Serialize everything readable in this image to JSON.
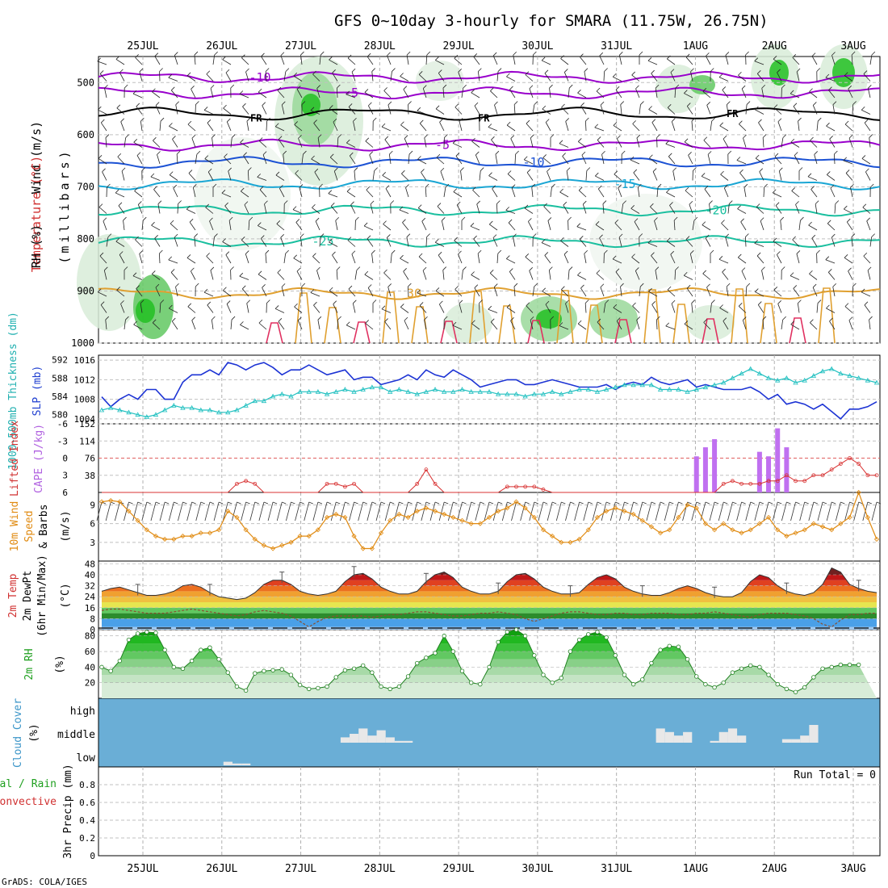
{
  "title": "GFS 0~10day 3-hourly for SMARA (11.75W, 26.75N)",
  "credit": "GrADS: COLA/IGES",
  "dates": [
    "25JUL",
    "26JUL",
    "27JUL",
    "28JUL",
    "29JUL",
    "30JUL",
    "31JUL",
    "1AUG",
    "2AUG",
    "3AUG"
  ],
  "panels": {
    "upper": {
      "ylabel_wind": "Wind (m/s)",
      "ylabel_temp": "Temperature (°C)",
      "ylabel_rh": "RH (%)",
      "ylabel_pressure": "(millibars)",
      "freezing_label": "FR"
    },
    "slp": {
      "ylabel_thick": "1000-500mb Thickness (dm)",
      "ylabel_slp": "SLP (mb)"
    },
    "cape": {
      "ylabel_li": "Lifted Index",
      "ylabel_cape": "CAPE (J/kg)"
    },
    "wind10": {
      "ylabel_a": "10m Wind",
      "ylabel_b": "Speed",
      "ylabel_c": "& Barbs",
      "ylabel_unit": "(m/s)"
    },
    "temp": {
      "ylabel_a": "2m Temp",
      "ylabel_b": "2m DewPt",
      "ylabel_c": "(6hr Min/Max)",
      "ylabel_unit": "(°C)"
    },
    "rh": {
      "ylabel_a": "2m RH",
      "ylabel_unit": "(%)"
    },
    "cloud": {
      "ylabel_a": "Cloud Cover",
      "ylabel_unit": "(%)",
      "levels": [
        "high",
        "middle",
        "low"
      ]
    },
    "precip": {
      "ylabel_total": "Total / Rain",
      "ylabel_conv": "Convective",
      "ylabel_a": "3hr Precip (mm)",
      "run_total": "Run Total = 0"
    }
  },
  "colors": {
    "isotherm_purple": "#9900cc",
    "isotherm_blue": "#1c52d4",
    "isotherm_sky": "#1aa6d4",
    "isotherm_teal": "#1abf9f",
    "isotherm_orange": "#e0a030",
    "slp_line": "#1c33d4",
    "thick_line": "#20c0c0",
    "li_line": "#d83030",
    "cape_bar": "#c070f0",
    "wind_line": "#e08a10",
    "rh_line": "#208020",
    "cloud_bg": "#6aaed6",
    "cloud_block": "#e8e8e8"
  },
  "chart_data": [
    {
      "panel": "upper-air",
      "type": "heatmap",
      "title": "Wind (m/s), Temperature (°C), RH (%)",
      "ylabel": "(millibars)",
      "y_ticks": [
        500,
        600,
        700,
        800,
        900,
        1000
      ],
      "ylim": [
        1000,
        450
      ],
      "isotherms": [
        {
          "label": "-10",
          "level_mb": 490
        },
        {
          "label": "-5",
          "level_mb": 520
        },
        {
          "label": "-5",
          "level_mb": 620
        },
        {
          "label": "-10",
          "level_mb": 653
        },
        {
          "label": "-15",
          "level_mb": 695
        },
        {
          "label": "-20",
          "level_mb": 745
        },
        {
          "label": "-25",
          "level_mb": 805
        },
        {
          "label": "30",
          "level_mb": 905
        }
      ],
      "contour_labels": [
        "5",
        "5",
        "5",
        "10",
        "15",
        "20",
        "25",
        "25",
        "30",
        "10",
        "-10",
        "-5",
        "-5",
        "10",
        "15",
        "20",
        "30",
        "30"
      ],
      "freezing_level_mb": 560
    },
    {
      "panel": "slp-thickness",
      "type": "line",
      "left_axis": {
        "label": "1000-500mb Thickness (dm)",
        "ticks": [
          580,
          584,
          588,
          592
        ]
      },
      "right_axis": {
        "label": "SLP (mb)",
        "ticks": [
          1004,
          1008,
          1012,
          1016
        ]
      },
      "series": [
        {
          "name": "SLP (mb)",
          "values": [
            1008.5,
            1006.5,
            1008,
            1009,
            1008,
            1010,
            1010,
            1008,
            1008,
            1011.5,
            1013,
            1013,
            1014,
            1013,
            1015.5,
            1015,
            1014,
            1015,
            1015.5,
            1014.5,
            1013,
            1014,
            1014,
            1015,
            1014,
            1013,
            1013.5,
            1014,
            1012,
            1012.5,
            1012.5,
            1011,
            1011.5,
            1012,
            1013,
            1012,
            1014,
            1013,
            1012.5,
            1014,
            1013,
            1012,
            1010.5,
            1011,
            1011.5,
            1012,
            1012,
            1011,
            1011,
            1011.5,
            1012,
            1011.5,
            1011,
            1010.5,
            1010.5,
            1010.5,
            1011,
            1010,
            1011,
            1011.5,
            1011,
            1012.5,
            1011.5,
            1011,
            1011.5,
            1012,
            1010.5,
            1011,
            1010.5,
            1010,
            1010,
            1010,
            1010.5,
            1009.5,
            1008,
            1009,
            1007,
            1007.5,
            1007,
            1006,
            1007,
            1005.5,
            1004,
            1006,
            1006,
            1006.5,
            1007.5
          ]
        },
        {
          "name": "Thickness (dm)",
          "values": [
            581,
            581.5,
            581,
            580.5,
            580,
            579.5,
            580,
            581,
            582,
            581.5,
            581.5,
            581,
            581,
            580.5,
            580.5,
            581,
            582,
            583,
            583,
            584,
            584.5,
            584,
            585,
            585,
            585,
            584.5,
            585,
            585.5,
            585,
            585.5,
            586,
            586,
            585,
            585.5,
            585,
            584.5,
            585,
            585.5,
            585,
            585,
            585.5,
            585,
            585,
            585,
            584.5,
            584.5,
            584.5,
            584,
            584.5,
            584.5,
            585,
            584.5,
            585,
            585.5,
            585.5,
            585,
            585.5,
            586,
            586.5,
            586.5,
            586.5,
            586.5,
            585.5,
            585.5,
            585.5,
            585,
            585.5,
            586,
            586.5,
            587,
            588,
            589,
            590,
            589,
            588,
            587.5,
            588,
            587,
            587.5,
            588.5,
            589.5,
            590,
            589,
            588.5,
            588,
            587.5,
            587
          ]
        }
      ]
    },
    {
      "panel": "cape-li",
      "type": "bar",
      "left_axis": {
        "label": "Lifted Index",
        "ticks": [
          "6",
          "3",
          "0",
          "-3",
          "-6"
        ]
      },
      "right_axis": {
        "label": "CAPE (J/kg)",
        "ticks": [
          38,
          76,
          114,
          152
        ]
      },
      "cape_bars": [
        {
          "step": 66,
          "value": 80
        },
        {
          "step": 67,
          "value": 100
        },
        {
          "step": 68,
          "value": 118
        },
        {
          "step": 73,
          "value": 90
        },
        {
          "step": 74,
          "value": 80
        },
        {
          "step": 75,
          "value": 142
        },
        {
          "step": 76,
          "value": 100
        }
      ],
      "lifted_index": [
        6,
        6,
        6,
        6,
        6,
        6,
        6,
        6,
        6,
        6,
        6,
        6,
        6,
        6,
        6,
        4.5,
        4,
        4.5,
        6,
        6,
        6,
        6,
        6,
        6,
        6,
        4.5,
        4.5,
        5,
        4.5,
        6,
        6,
        6,
        6,
        6,
        6,
        4.5,
        2,
        4.5,
        6,
        6,
        6,
        6,
        6,
        6,
        6,
        5,
        5,
        5,
        5,
        5.5,
        6,
        6,
        6,
        6,
        6,
        6,
        6,
        6,
        6,
        6,
        6,
        6,
        6,
        6,
        6,
        6,
        6,
        6,
        6,
        4.5,
        4,
        4.5,
        4.5,
        4.5,
        4,
        4,
        3,
        4,
        4,
        3,
        3,
        2,
        1,
        0,
        1,
        3,
        3
      ]
    },
    {
      "panel": "wind10m",
      "type": "line",
      "ylabel": "Speed & Barbs (m/s)",
      "y_ticks": [
        3,
        6,
        9
      ],
      "ylim": [
        0,
        11
      ],
      "series": [
        {
          "name": "10m Wind Speed",
          "values": [
            9.5,
            9.7,
            9.5,
            8,
            6.5,
            5,
            4,
            3.5,
            3.5,
            4,
            4,
            4.5,
            4.5,
            5,
            8,
            7,
            5,
            3.5,
            2.5,
            2,
            2.5,
            3,
            4,
            4,
            5,
            7,
            7.5,
            7,
            4,
            2,
            2,
            4.5,
            6.5,
            7.5,
            7,
            8,
            8.5,
            8,
            7.5,
            7,
            6.5,
            6,
            6,
            7,
            8,
            8.5,
            9.5,
            8.5,
            7,
            5,
            4,
            3,
            3,
            3.5,
            5,
            7,
            8,
            8.5,
            8,
            7.5,
            6.5,
            5.5,
            4.5,
            5,
            7,
            9,
            8.5,
            6,
            5,
            6,
            5,
            4.5,
            5,
            6,
            7,
            5,
            4,
            4.5,
            5,
            6,
            5.5,
            5,
            6,
            7,
            11,
            7,
            3.5
          ]
        }
      ]
    },
    {
      "panel": "temp2m",
      "type": "area",
      "ylabel": "2m Temp / 2m DewPt (6hr Min/Max) (°C)",
      "y_ticks": [
        0,
        8,
        16,
        24,
        32,
        40,
        48
      ],
      "ylim": [
        0,
        48
      ],
      "series": [
        {
          "name": "2m Temp",
          "values": [
            28,
            30,
            31,
            29,
            27,
            25,
            25,
            26,
            28,
            32,
            33,
            31,
            27,
            24,
            23,
            22,
            23,
            27,
            33,
            36,
            36,
            33,
            28,
            26,
            25,
            26,
            28,
            35,
            40,
            41,
            37,
            31,
            28,
            26,
            26,
            28,
            35,
            40,
            42,
            38,
            31,
            28,
            26,
            26,
            28,
            35,
            40,
            41,
            37,
            31,
            28,
            26,
            26,
            27,
            33,
            38,
            40,
            37,
            31,
            28,
            26,
            25,
            25,
            27,
            30,
            32,
            30,
            27,
            25,
            24,
            24,
            27,
            35,
            40,
            38,
            32,
            28,
            26,
            25,
            27,
            33,
            45,
            42,
            33,
            30,
            28,
            27
          ]
        },
        {
          "name": "2m DewPt",
          "values": [
            14,
            15,
            15,
            14,
            13,
            12,
            12,
            12,
            13,
            14,
            15,
            14,
            13,
            12,
            11,
            10,
            11,
            13,
            14,
            13,
            12,
            10,
            6,
            2,
            6,
            9,
            10,
            10,
            10,
            10,
            9,
            10,
            11,
            11,
            12,
            13,
            13,
            12,
            11,
            10,
            10,
            11,
            12,
            12,
            13,
            12,
            11,
            8,
            6,
            8,
            10,
            12,
            13,
            13,
            12,
            11,
            11,
            12,
            12,
            11,
            11,
            12,
            12,
            12,
            11,
            11,
            12,
            12,
            13,
            12,
            11,
            10,
            9,
            11,
            12,
            12,
            12,
            11,
            10,
            8,
            4,
            2,
            7,
            11,
            11,
            12,
            12
          ]
        }
      ]
    },
    {
      "panel": "rh2m",
      "type": "area",
      "ylabel": "2m RH (%)",
      "y_ticks": [
        20,
        40,
        60,
        80
      ],
      "ylim": [
        0,
        88
      ],
      "series": [
        {
          "name": "2m RH",
          "values": [
            40,
            35,
            48,
            75,
            83,
            85,
            84,
            62,
            40,
            38,
            48,
            62,
            65,
            50,
            33,
            15,
            10,
            32,
            35,
            36,
            37,
            30,
            17,
            12,
            13,
            15,
            27,
            36,
            38,
            42,
            33,
            15,
            12,
            15,
            28,
            45,
            52,
            58,
            80,
            60,
            35,
            20,
            18,
            40,
            72,
            85,
            88,
            80,
            55,
            30,
            20,
            26,
            60,
            75,
            82,
            85,
            78,
            55,
            30,
            18,
            24,
            45,
            62,
            67,
            66,
            50,
            28,
            18,
            14,
            20,
            33,
            38,
            42,
            40,
            30,
            18,
            12,
            8,
            14,
            27,
            38,
            40,
            43,
            43,
            43
          ]
        }
      ]
    },
    {
      "panel": "cloud",
      "type": "bar",
      "levels": [
        "high",
        "middle",
        "low"
      ],
      "blocks": [
        {
          "level": "low",
          "steps": [
            14,
            15,
            16
          ],
          "heights": [
            2,
            1,
            1
          ]
        },
        {
          "level": "middle",
          "steps": [
            27,
            28,
            29,
            30,
            31,
            32,
            33,
            34
          ],
          "heights": [
            3,
            5,
            8,
            4,
            7,
            3,
            1,
            1
          ]
        },
        {
          "level": "middle",
          "steps": [
            62,
            63,
            64,
            65
          ],
          "heights": [
            8,
            6,
            4,
            6
          ]
        },
        {
          "level": "middle",
          "steps": [
            68,
            69,
            70,
            71
          ],
          "heights": [
            1,
            6,
            8,
            4
          ]
        },
        {
          "level": "middle",
          "steps": [
            76,
            77,
            78,
            79
          ],
          "heights": [
            2,
            2,
            4,
            10
          ]
        }
      ]
    },
    {
      "panel": "precip",
      "type": "bar",
      "ylabel": "3hr Precip (mm)",
      "y_ticks": [
        0,
        0.2,
        0.4,
        0.6,
        0.8
      ],
      "ylim": [
        0,
        1.0
      ],
      "series": [
        {
          "name": "Total / Rain",
          "values": []
        },
        {
          "name": "Convective",
          "values": []
        }
      ]
    }
  ]
}
